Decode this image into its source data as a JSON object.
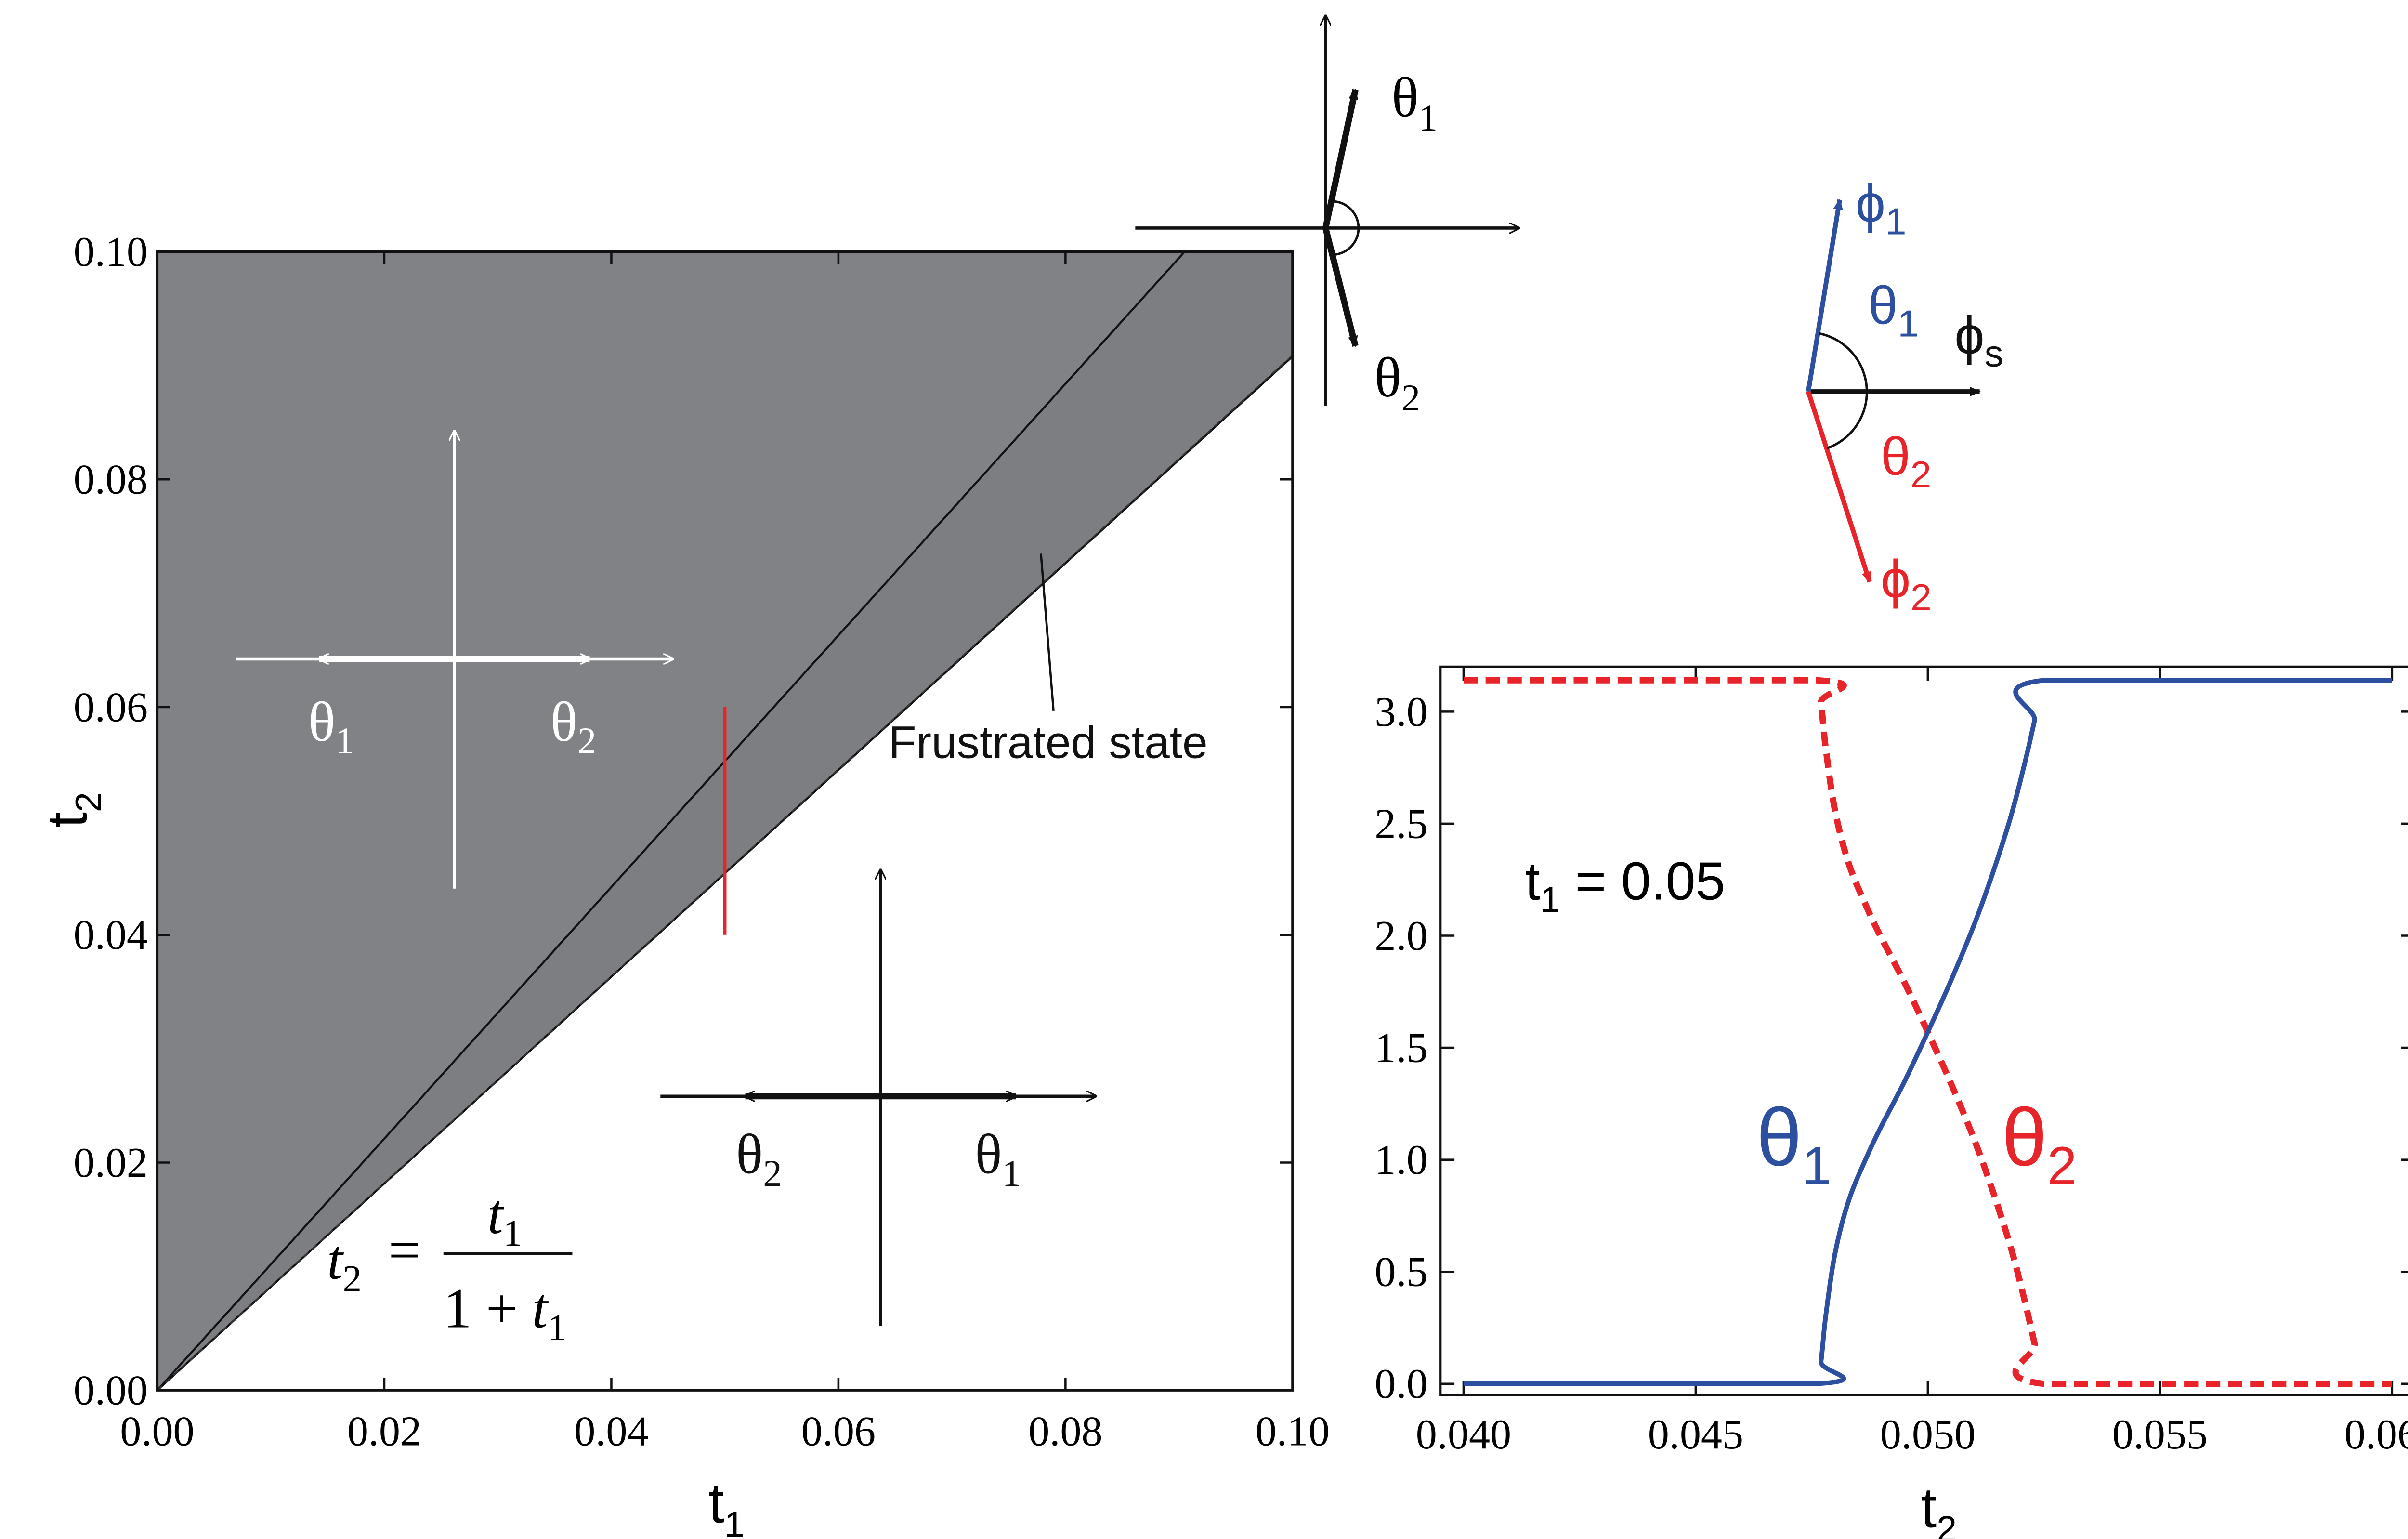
{
  "colors": {
    "gray_region": "#818285",
    "blue": "#2c4fa0",
    "red": "#e8242b",
    "black": "#111111",
    "white": "#ffffff"
  },
  "chart_data": [
    {
      "type": "area",
      "title": "",
      "xlabel_base": "t",
      "xlabel_sub": "1",
      "ylabel_base": "t",
      "ylabel_sub": "2",
      "xlim": [
        0,
        0.1
      ],
      "ylim": [
        0,
        0.1
      ],
      "xticks": [
        0,
        0.02,
        0.04,
        0.06,
        0.08,
        0.1
      ],
      "yticks": [
        0,
        0.02,
        0.04,
        0.06,
        0.08,
        0.1
      ],
      "xtick_labels": [
        "0.00",
        "0.02",
        "0.04",
        "0.06",
        "0.08",
        "0.10"
      ],
      "ytick_labels": [
        "0.00",
        "0.02",
        "0.04",
        "0.06",
        "0.08",
        "0.10"
      ],
      "boundaries": {
        "upper_line_end": [
          0.0905,
          0.1
        ],
        "lower_line_end": [
          0.1,
          0.0908
        ],
        "dashed_line": "t2 = t1 / (1 + t1)",
        "dashed_line_end": [
          0.1,
          0.0909
        ]
      },
      "marker_segment": {
        "t1": 0.05,
        "t2_range": [
          0.04,
          0.06
        ]
      },
      "annotations": {
        "frustrated_label": "Frustrated state",
        "equation_lhs_base": "t",
        "equation_lhs_sub": "2",
        "equation_equals": "=",
        "equation_num_base": "t",
        "equation_num_sub": "1",
        "equation_den_prefix": "1 + ",
        "equation_den_base": "t",
        "equation_den_sub": "1",
        "upper_left_left_base": "θ",
        "upper_left_left_sub": "1",
        "upper_left_right_base": "θ",
        "upper_left_right_sub": "2",
        "lower_right_left_base": "θ",
        "lower_right_left_sub": "2",
        "lower_right_right_base": "θ",
        "lower_right_right_sub": "1"
      }
    },
    {
      "type": "line",
      "title": "",
      "xlabel_base": "t",
      "xlabel_sub": "2",
      "ylabel": "",
      "xlim": [
        0.0395,
        0.0605
      ],
      "ylim": [
        -0.05,
        3.2
      ],
      "xticks": [
        0.04,
        0.045,
        0.05,
        0.055,
        0.06
      ],
      "yticks": [
        0,
        0.5,
        1,
        1.5,
        2,
        2.5,
        3
      ],
      "xtick_labels": [
        "0.040",
        "0.045",
        "0.050",
        "0.055",
        "0.060"
      ],
      "ytick_labels": [
        "0.0",
        "0.5",
        "1.0",
        "1.5",
        "2.0",
        "2.5",
        "3.0"
      ],
      "parameter_label_base": "t",
      "parameter_label_sub": "1",
      "parameter_label_value": " = 0.05",
      "series": [
        {
          "name": "θ1",
          "label_base": "θ",
          "label_sub": "1",
          "style": "solid",
          "color": "#2c4fa0",
          "x": [
            0.04,
            0.0476,
            0.0477,
            0.0478,
            0.048,
            0.0483,
            0.0487,
            0.049,
            0.0495,
            0.05,
            0.0505,
            0.051,
            0.0514,
            0.0518,
            0.0521,
            0.0523,
            0.0525,
            0.06
          ],
          "y": [
            0,
            0,
            0.1,
            0.3,
            0.58,
            0.82,
            1.02,
            1.15,
            1.35,
            1.57,
            1.8,
            2.05,
            2.28,
            2.54,
            2.78,
            2.96,
            3.14,
            3.14
          ]
        },
        {
          "name": "θ2",
          "label_base": "θ",
          "label_sub": "2",
          "style": "dashed",
          "color": "#e8242b",
          "x": [
            0.04,
            0.0476,
            0.0477,
            0.0478,
            0.048,
            0.0483,
            0.0487,
            0.049,
            0.0495,
            0.05,
            0.0505,
            0.051,
            0.0514,
            0.0518,
            0.0521,
            0.0523,
            0.0525,
            0.06
          ],
          "y": [
            3.14,
            3.14,
            3.04,
            2.84,
            2.56,
            2.32,
            2.12,
            1.99,
            1.79,
            1.57,
            1.34,
            1.09,
            0.86,
            0.6,
            0.36,
            0.18,
            0,
            0
          ]
        }
      ]
    }
  ],
  "diagrams": {
    "top_center": {
      "upper_base": "θ",
      "upper_sub": "1",
      "lower_base": "θ",
      "lower_sub": "2"
    },
    "top_right": {
      "phi1_base": "ϕ",
      "phi1_sub": "1",
      "theta1_base": "θ",
      "theta1_sub": "1",
      "phis_base": "ϕ",
      "phis_sub": "s",
      "theta2_base": "θ",
      "theta2_sub": "2",
      "phi2_base": "ϕ",
      "phi2_sub": "2"
    }
  }
}
